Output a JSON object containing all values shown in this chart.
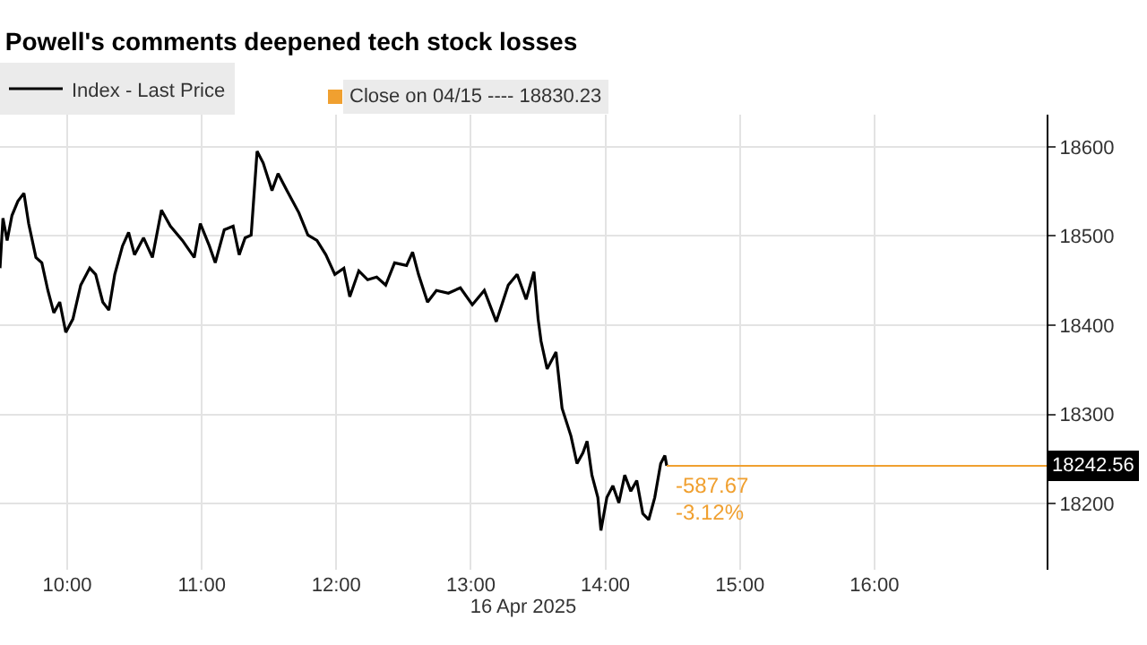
{
  "chart_data": {
    "type": "line",
    "subtitle": "Powell's comments deepened tech stock losses",
    "xlabel": "16 Apr 2025",
    "x": [
      9.5,
      9.522,
      9.553,
      9.589,
      9.633,
      9.678,
      9.713,
      9.767,
      9.811,
      9.856,
      9.9,
      9.944,
      9.989,
      10.042,
      10.1,
      10.167,
      10.211,
      10.264,
      10.309,
      10.353,
      10.411,
      10.456,
      10.5,
      10.567,
      10.633,
      10.7,
      10.767,
      10.856,
      10.944,
      10.989,
      11.056,
      11.1,
      11.167,
      11.233,
      11.278,
      11.322,
      11.367,
      11.411,
      11.456,
      11.522,
      11.567,
      11.633,
      11.722,
      11.789,
      11.856,
      11.922,
      11.989,
      12.056,
      12.1,
      12.167,
      12.233,
      12.3,
      12.367,
      12.433,
      12.522,
      12.567,
      12.611,
      12.678,
      12.744,
      12.833,
      12.922,
      13.011,
      13.1,
      13.189,
      13.278,
      13.344,
      13.411,
      13.469,
      13.5,
      13.522,
      13.567,
      13.633,
      13.678,
      13.744,
      13.789,
      13.833,
      13.864,
      13.9,
      13.944,
      13.967,
      14.011,
      14.056,
      14.1,
      14.144,
      14.189,
      14.233,
      14.278,
      14.322,
      14.367,
      14.411,
      14.442,
      14.456
    ],
    "series": [
      {
        "name": "Index - Last Price",
        "color": "#000000",
        "values": [
          18464,
          18520,
          18495,
          18523,
          18539,
          18548,
          18514,
          18476,
          18470,
          18439,
          18414,
          18426,
          18392,
          18407,
          18445,
          18464,
          18457,
          18426,
          18417,
          18457,
          18489,
          18504,
          18479,
          18498,
          18476,
          18529,
          18511,
          18495,
          18476,
          18514,
          18489,
          18470,
          18507,
          18511,
          18479,
          18498,
          18501,
          18595,
          18582,
          18551,
          18570,
          18551,
          18526,
          18501,
          18495,
          18479,
          18457,
          18464,
          18432,
          18461,
          18451,
          18454,
          18445,
          18470,
          18467,
          18482,
          18457,
          18426,
          18439,
          18436,
          18442,
          18423,
          18439,
          18404,
          18445,
          18457,
          18429,
          18460,
          18407,
          18382,
          18351,
          18370,
          18307,
          18276,
          18245,
          18257,
          18270,
          18232,
          18207,
          18170,
          18207,
          18220,
          18201,
          18232,
          18214,
          18226,
          18189,
          18182,
          18207,
          18245,
          18254,
          18242.56
        ]
      }
    ],
    "xlim": [
      9.5,
      17.28
    ],
    "xticks": [
      {
        "value": 10,
        "label": "10:00"
      },
      {
        "value": 11,
        "label": "11:00"
      },
      {
        "value": 12,
        "label": "12:00"
      },
      {
        "value": 13,
        "label": "13:00"
      },
      {
        "value": 14,
        "label": "14:00"
      },
      {
        "value": 15,
        "label": "15:00"
      },
      {
        "value": 16,
        "label": "16:00"
      }
    ],
    "ylim": [
      18126,
      18636
    ],
    "yticks": [
      18200,
      18300,
      18400,
      18500,
      18600
    ],
    "ref_lines": [
      {
        "axis": "y",
        "value": 18242.56,
        "label": "18242.56",
        "color": "#f0a030"
      }
    ],
    "annotations": [
      "Close on 04/15 ---- 18830.23",
      "-587.67",
      "-3.12%"
    ],
    "grid": true,
    "legend": "top left",
    "line_style": "solid",
    "marker": "none"
  }
}
